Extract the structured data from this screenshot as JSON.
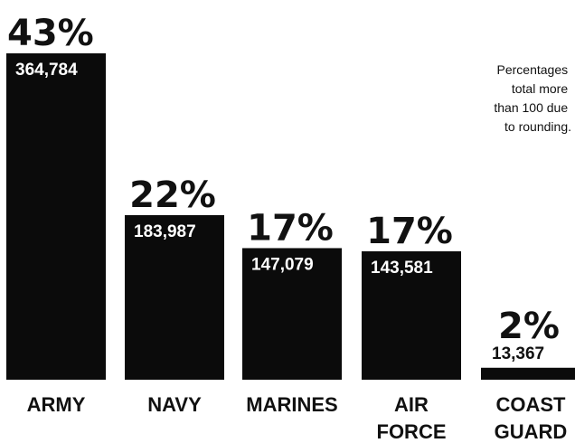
{
  "chart_data": {
    "type": "bar",
    "categories": [
      [
        "ARMY"
      ],
      [
        "NAVY"
      ],
      [
        "MARINES"
      ],
      [
        "AIR",
        "FORCE"
      ],
      [
        "COAST",
        "GUARD"
      ]
    ],
    "values": [
      364784,
      183987,
      147079,
      143581,
      13367
    ],
    "value_labels": [
      "364,784",
      "183,987",
      "147,079",
      "143,581",
      "13,367"
    ],
    "percent_labels": [
      "43%",
      "22%",
      "17%",
      "17%",
      "2%"
    ],
    "note": [
      "Percentages",
      "total more",
      "than 100 due",
      "to rounding."
    ],
    "ylim": [
      0,
      364784
    ],
    "colors": {
      "bar": "#0b0b0b",
      "text_on_bar": "#ffffff",
      "text": "#111111"
    }
  }
}
